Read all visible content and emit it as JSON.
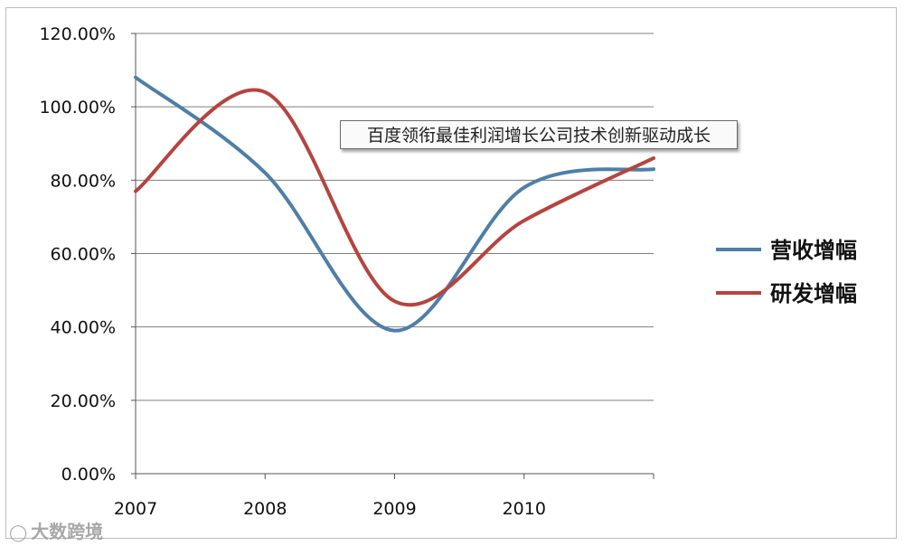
{
  "chart_data": {
    "type": "line",
    "title": "",
    "xlabel": "",
    "ylabel": "",
    "x_ticks": [
      "2007",
      "2008",
      "2009",
      "2010"
    ],
    "y_ticks": [
      "0.00%",
      "20.00%",
      "40.00%",
      "60.00%",
      "80.00%",
      "100.00%",
      "120.00%"
    ],
    "ylim": [
      0,
      120
    ],
    "x_range": [
      2007,
      2011
    ],
    "grid": "horizontal",
    "legend_position": "right",
    "series": [
      {
        "name": "营收增幅",
        "color": "#4f7ea8",
        "points": [
          [
            2007,
            108
          ],
          [
            2008,
            82
          ],
          [
            2009,
            39
          ],
          [
            2010,
            78
          ],
          [
            2011,
            83
          ]
        ]
      },
      {
        "name": "研发增幅",
        "color": "#b5443f",
        "points": [
          [
            2007,
            77
          ],
          [
            2008,
            104
          ],
          [
            2009,
            47
          ],
          [
            2010,
            69
          ],
          [
            2011,
            86
          ]
        ]
      }
    ],
    "annotation": "百度领衔最佳利润增长公司技术创新驱动成长"
  },
  "watermark": {
    "text": "大数跨境",
    "icon": "chat-bubble-icon"
  }
}
